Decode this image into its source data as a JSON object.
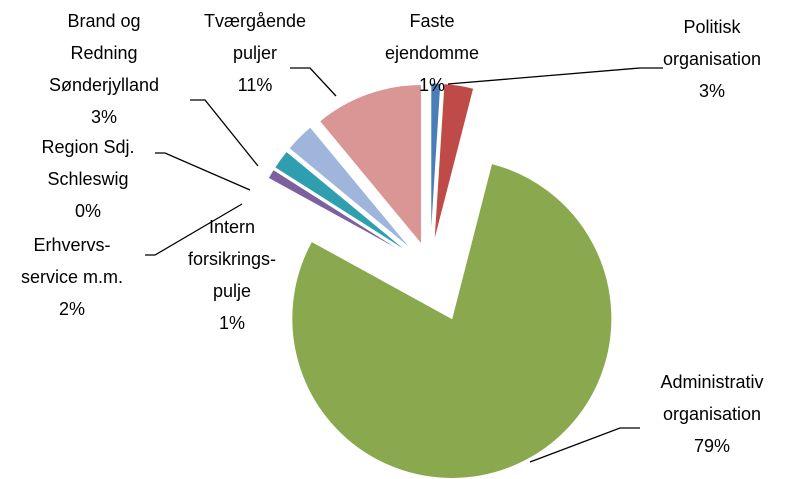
{
  "chart_data": {
    "type": "pie",
    "categories": [
      [
        "Faste",
        "ejendomme"
      ],
      [
        "Politisk",
        "organisation"
      ],
      [
        "Administrativ",
        "organisation"
      ],
      [
        "Intern",
        "forsikrings-",
        "pulje"
      ],
      [
        "Erhvervs-",
        "service m.m."
      ],
      [
        "Region Sdj.",
        "Schleswig"
      ],
      [
        "Brand og",
        "Redning",
        "Sønderjylland"
      ],
      [
        "Tværgående",
        "puljer"
      ]
    ],
    "values": [
      1,
      3,
      79,
      1,
      2,
      0,
      3,
      11
    ],
    "value_labels": [
      "1%",
      "3%",
      "79%",
      "1%",
      "2%",
      "0%",
      "3%",
      "11%"
    ],
    "colors": [
      "#4a7ebb",
      "#be4b48",
      "#8aa84e",
      "#7d60a0",
      "#2f9fb0",
      "#f59d56",
      "#a0b5dc",
      "#d99694"
    ]
  }
}
